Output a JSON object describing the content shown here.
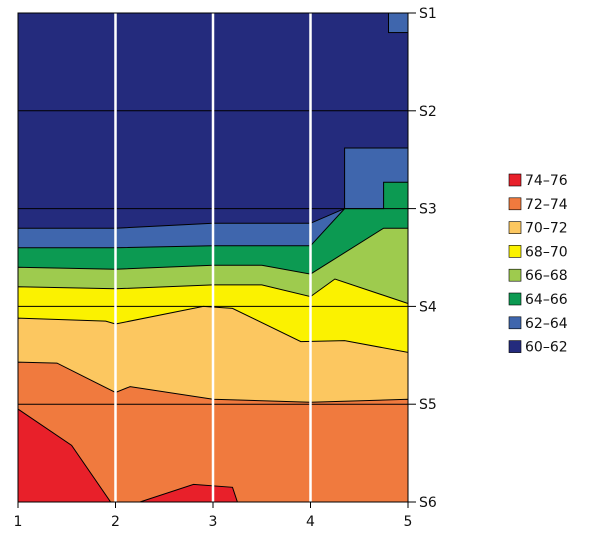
{
  "chart_data": {
    "type": "area",
    "title": "",
    "xlabel": "",
    "ylabel": "",
    "x_ticks": [
      "1",
      "2",
      "3",
      "4",
      "5"
    ],
    "y_ticks": [
      "S1",
      "S2",
      "S3",
      "S4",
      "S5",
      "S6"
    ],
    "xlim": [
      1,
      5
    ],
    "ylim": [
      1,
      6
    ],
    "grid": "vertical white lines at x ticks; horizontal black lines at y ticks",
    "legend_position": "right",
    "legend": [
      {
        "label": "74–76",
        "color": "#e8202a"
      },
      {
        "label": "72–74",
        "color": "#f07a3e"
      },
      {
        "label": "70–72",
        "color": "#fcc760"
      },
      {
        "label": "68–70",
        "color": "#fbf200"
      },
      {
        "label": "66–68",
        "color": "#9ecb4e"
      },
      {
        "label": "64–66",
        "color": "#0c9a52"
      },
      {
        "label": "62–64",
        "color": "#3f66ad"
      },
      {
        "label": "60–62",
        "color": "#242b7d"
      }
    ],
    "band_boundaries": [
      {
        "name": "60-62 / 62-64",
        "points": [
          [
            1,
            3.2
          ],
          [
            2,
            3.2
          ],
          [
            3,
            3.15
          ],
          [
            4,
            3.15
          ],
          [
            4.35,
            3.0
          ],
          [
            4.35,
            2.38
          ],
          [
            5,
            2.38
          ]
        ]
      },
      {
        "name": "62-64 / 64-66",
        "points": [
          [
            1,
            3.4
          ],
          [
            2,
            3.4
          ],
          [
            3,
            3.38
          ],
          [
            4,
            3.38
          ],
          [
            4.35,
            3.0
          ],
          [
            4.75,
            3.0
          ],
          [
            4.75,
            2.73
          ],
          [
            5,
            2.73
          ]
        ]
      },
      {
        "name": "64-66 / 64-66 edge",
        "points": [
          [
            1,
            3.6
          ],
          [
            2,
            3.62
          ],
          [
            3,
            3.58
          ],
          [
            4,
            3.58
          ],
          [
            5,
            3.18
          ]
        ]
      },
      {
        "name": "64-66 / 66-68",
        "points": [
          [
            1,
            3.6
          ],
          [
            2,
            3.62
          ],
          [
            3,
            3.58
          ],
          [
            3.5,
            3.58
          ],
          [
            4,
            3.67
          ],
          [
            4.75,
            3.2
          ],
          [
            5,
            3.2
          ]
        ]
      },
      {
        "name": "66-68 / 68-70",
        "points": [
          [
            1,
            3.8
          ],
          [
            2,
            3.82
          ],
          [
            3,
            3.78
          ],
          [
            3.5,
            3.78
          ],
          [
            4,
            3.9
          ],
          [
            4.25,
            3.72
          ],
          [
            5,
            3.97
          ]
        ]
      },
      {
        "name": "68-70 / 70-72",
        "points": [
          [
            1,
            4.12
          ],
          [
            1.9,
            4.15
          ],
          [
            2,
            4.18
          ],
          [
            2.9,
            4.0
          ],
          [
            3.2,
            4.02
          ],
          [
            3.9,
            4.36
          ],
          [
            4.35,
            4.35
          ],
          [
            5,
            4.47
          ]
        ]
      },
      {
        "name": "70-72 / 72-74",
        "points": [
          [
            1,
            4.57
          ],
          [
            1.4,
            4.58
          ],
          [
            2,
            4.88
          ],
          [
            2.15,
            4.82
          ],
          [
            3,
            4.95
          ],
          [
            4,
            4.98
          ],
          [
            5,
            4.95
          ]
        ]
      },
      {
        "name": "72-74 / 74-76",
        "points": [
          [
            1,
            5.05
          ],
          [
            1.55,
            5.42
          ],
          [
            1.95,
            6.0
          ],
          [
            2.25,
            6.0
          ],
          [
            2.8,
            5.82
          ],
          [
            3.2,
            5.85
          ],
          [
            3.25,
            6.0
          ]
        ]
      }
    ]
  }
}
